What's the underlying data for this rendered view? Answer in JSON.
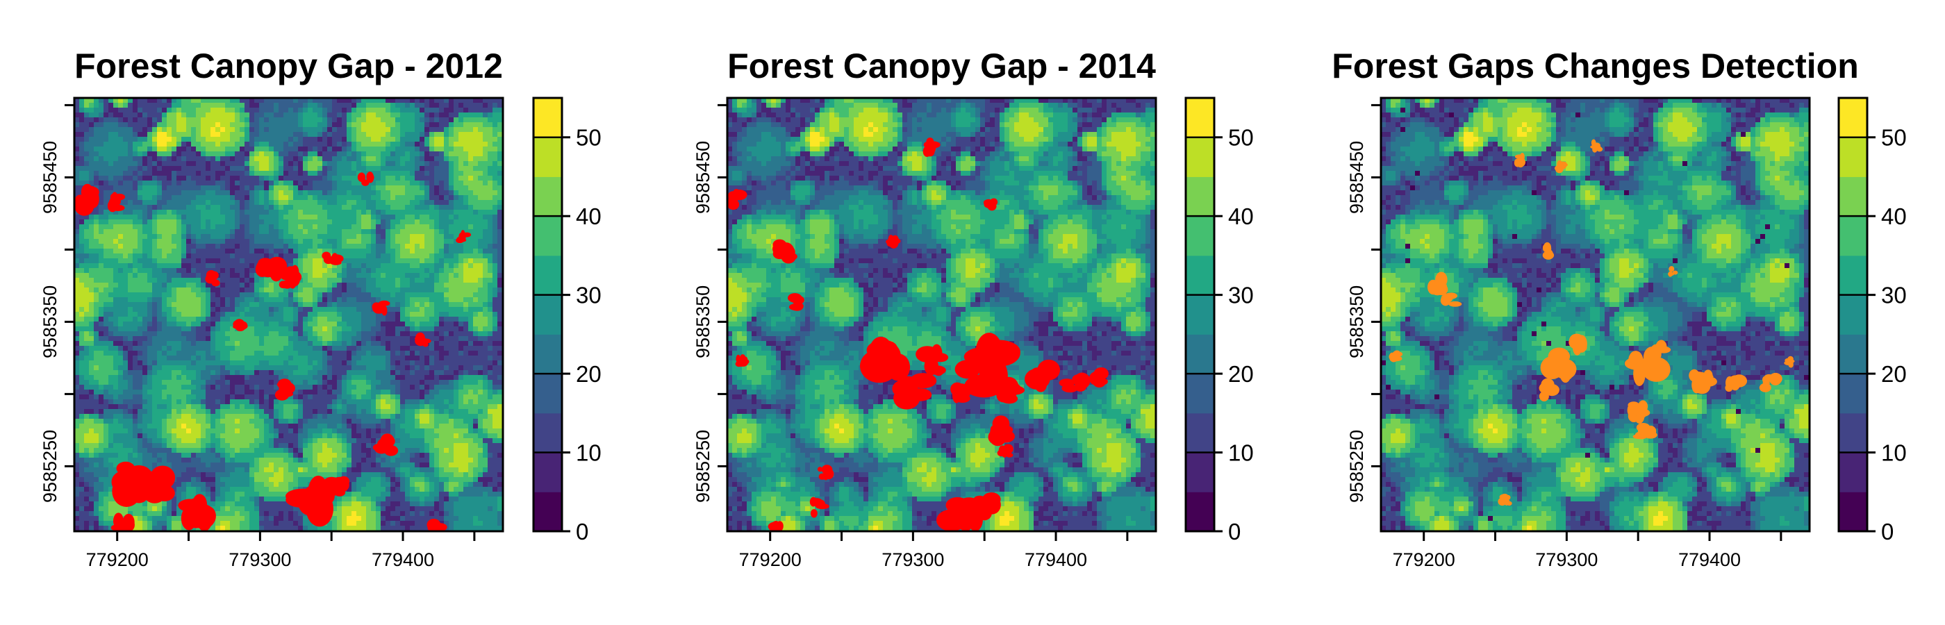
{
  "chart_data": [
    {
      "type": "heatmap",
      "title": "Forest Canopy Gap - 2012",
      "xlabel": "",
      "ylabel": "",
      "xlim": [
        779170,
        779470
      ],
      "ylim": [
        9585205,
        9585505
      ],
      "x_ticks": [
        779200,
        779250,
        779300,
        779350,
        779400,
        779450
      ],
      "x_tick_labels": [
        "779200",
        "779300",
        "779400"
      ],
      "y_ticks": [
        9585200,
        9585250,
        9585300,
        9585350,
        9585400,
        9585450,
        9585500
      ],
      "y_tick_labels": [
        "9585250",
        "9585350",
        "9585450"
      ],
      "overlay": {
        "label": "gap",
        "color": "#ff0000"
      },
      "colorbar": {
        "min": 0,
        "max": 55,
        "step": 5,
        "ticks": [
          0,
          10,
          20,
          30,
          40,
          50
        ]
      }
    },
    {
      "type": "heatmap",
      "title": "Forest Canopy Gap - 2014",
      "xlabel": "",
      "ylabel": "",
      "xlim": [
        779170,
        779470
      ],
      "ylim": [
        9585205,
        9585505
      ],
      "x_ticks": [
        779200,
        779250,
        779300,
        779350,
        779400,
        779450
      ],
      "x_tick_labels": [
        "779200",
        "779300",
        "779400"
      ],
      "y_ticks": [
        9585200,
        9585250,
        9585300,
        9585350,
        9585400,
        9585450,
        9585500
      ],
      "y_tick_labels": [
        "9585250",
        "9585350",
        "9585450"
      ],
      "overlay": {
        "label": "gap",
        "color": "#ff0000"
      },
      "colorbar": {
        "min": 0,
        "max": 55,
        "step": 5,
        "ticks": [
          0,
          10,
          20,
          30,
          40,
          50
        ]
      }
    },
    {
      "type": "heatmap",
      "title": "Forest Gaps Changes Detection",
      "xlabel": "",
      "ylabel": "",
      "xlim": [
        779170,
        779470
      ],
      "ylim": [
        9585205,
        9585505
      ],
      "x_ticks": [
        779200,
        779250,
        779300,
        779350,
        779400,
        779450
      ],
      "x_tick_labels": [
        "779200",
        "779300",
        "779400"
      ],
      "y_ticks": [
        9585200,
        9585250,
        9585300,
        9585350,
        9585400,
        9585450,
        9585500
      ],
      "y_tick_labels": [
        "9585250",
        "9585350",
        "9585450"
      ],
      "overlay": {
        "label": "gap change",
        "color": "#ff8c1a"
      },
      "colorbar": {
        "min": 0,
        "max": 55,
        "step": 5,
        "ticks": [
          0,
          10,
          20,
          30,
          40,
          50
        ]
      }
    }
  ],
  "palette": [
    "#440154",
    "#482475",
    "#414487",
    "#355f8d",
    "#2a788e",
    "#21918c",
    "#22a884",
    "#44bf70",
    "#7ad151",
    "#bddf26",
    "#fde725"
  ]
}
